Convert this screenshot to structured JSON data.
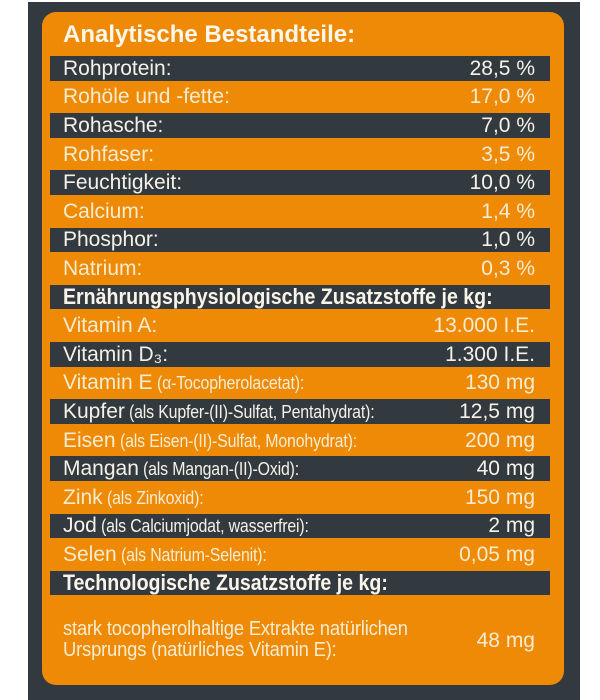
{
  "title": "Analytische Bestandteile:",
  "colors": {
    "orange": "#EE8A05",
    "charcoal": "#333A3F",
    "text_on_dark": "#F5F1E8",
    "text_on_orange": "#F6ECD2"
  },
  "rows": [
    {
      "type": "header",
      "text": "Analytische Bestandteile:"
    },
    {
      "type": "data",
      "label": "Rohprotein:",
      "detail": "",
      "value": "28,5 %"
    },
    {
      "type": "data",
      "label": "Rohöle und -fette:",
      "detail": "",
      "value": "17,0 %"
    },
    {
      "type": "data",
      "label": "Rohasche:",
      "detail": "",
      "value": "7,0 %"
    },
    {
      "type": "data",
      "label": "Rohfaser:",
      "detail": "",
      "value": "3,5 %"
    },
    {
      "type": "data",
      "label": "Feuchtigkeit:",
      "detail": "",
      "value": "10,0 %"
    },
    {
      "type": "data",
      "label": "Calcium:",
      "detail": "",
      "value": "1,4 %"
    },
    {
      "type": "data",
      "label": "Phosphor:",
      "detail": "",
      "value": "1,0 %"
    },
    {
      "type": "data",
      "label": "Natrium:",
      "detail": "",
      "value": "0,3 %"
    },
    {
      "type": "header",
      "text": "Ernährungsphysiologische Zusatzstoffe je kg:"
    },
    {
      "type": "data",
      "label": "Vitamin A:",
      "detail": "",
      "value": "13.000 I.E."
    },
    {
      "type": "data",
      "label": "Vitamin D₃:",
      "detail": "",
      "value": "1.300 I.E."
    },
    {
      "type": "data",
      "label": "Vitamin E",
      "detail": "(α-Tocopherolacetat):",
      "value": "130 mg"
    },
    {
      "type": "data",
      "label": "Kupfer",
      "detail": "(als Kupfer-(II)-Sulfat, Pentahydrat):",
      "value": "12,5 mg"
    },
    {
      "type": "data",
      "label": "Eisen",
      "detail": "(als Eisen-(II)-Sulfat, Monohydrat):",
      "value": "200 mg"
    },
    {
      "type": "data",
      "label": "Mangan",
      "detail": "(als Mangan-(II)-Oxid):",
      "value": "40 mg"
    },
    {
      "type": "data",
      "label": "Zink",
      "detail": "(als Zinkoxid):",
      "value": "150 mg"
    },
    {
      "type": "data",
      "label": "Jod",
      "detail": "(als Calciumjodat, wasserfrei):",
      "value": "2 mg"
    },
    {
      "type": "data",
      "label": "Selen",
      "detail": "(als Natrium-Selenit):",
      "value": "0,05 mg"
    },
    {
      "type": "header",
      "text": "Technologische Zusatzstoffe je kg:"
    },
    {
      "type": "data_tall",
      "label_line1": "stark tocopherolhaltige Extrakte natürlichen",
      "label_line2": "Ursprungs (natürliches Vitamin E):",
      "value": "48 mg"
    }
  ]
}
